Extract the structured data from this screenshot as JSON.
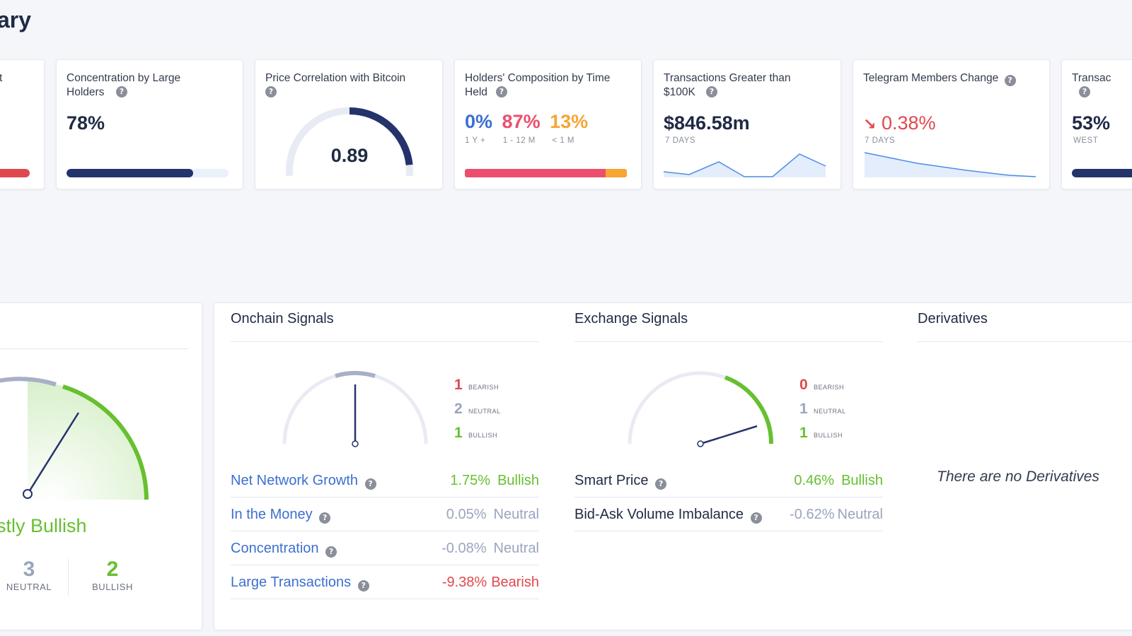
{
  "page": {
    "title": "ary"
  },
  "cards": {
    "first": {
      "title": "t"
    },
    "concentration": {
      "title": "Concentration by Large Holders",
      "value": "78%",
      "fill_fraction": 0.78
    },
    "correlation": {
      "title": "Price Correlation with Bitcoin",
      "value": "0.89",
      "gauge_fraction": 0.89
    },
    "holders": {
      "title": "Holders' Composition by Time Held",
      "segments": [
        {
          "value": "0%",
          "label": "1 Y +",
          "color": "#3c6fd1",
          "fraction": 0.0
        },
        {
          "value": "87%",
          "label": "1 - 12 M",
          "color": "#ec4f6d",
          "fraction": 0.87
        },
        {
          "value": "13%",
          "label": "< 1 M",
          "color": "#f7a533",
          "fraction": 0.13
        }
      ]
    },
    "transactions": {
      "title": "Transactions Greater than $100K",
      "value": "$846.58m",
      "period": "7 DAYS"
    },
    "telegram": {
      "title": "Telegram Members Change",
      "value": "0.38%",
      "period": "7 DAYS",
      "trend": "down"
    },
    "last": {
      "title": "Transac",
      "value": "53%",
      "sub": "WEST"
    }
  },
  "panels": {
    "overall": {
      "verdict": "stly Bullish",
      "neutral": {
        "count": "3",
        "label": "NEUTRAL"
      },
      "bullish": {
        "count": "2",
        "label": "BULLISH"
      }
    },
    "onchain": {
      "title": "Onchain Signals",
      "bearish": {
        "count": "1",
        "label": "bearish"
      },
      "neutral": {
        "count": "2",
        "label": "neutral"
      },
      "bullish": {
        "count": "1",
        "label": "bullish"
      },
      "rows": [
        {
          "name": "Net Network Growth",
          "pct": "1.75%",
          "status": "Bullish"
        },
        {
          "name": "In the Money",
          "pct": "0.05%",
          "status": "Neutral"
        },
        {
          "name": "Concentration",
          "pct": "-0.08%",
          "status": "Neutral"
        },
        {
          "name": "Large Transactions",
          "pct": "-9.38%",
          "status": "Bearish"
        }
      ]
    },
    "exchange": {
      "title": "Exchange Signals",
      "bearish": {
        "count": "0",
        "label": "bearish"
      },
      "neutral": {
        "count": "1",
        "label": "neutral"
      },
      "bullish": {
        "count": "1",
        "label": "bullish"
      },
      "rows": [
        {
          "name": "Smart Price",
          "pct": "0.46%",
          "status": "Bullish"
        },
        {
          "name": "Bid-Ask Volume Imbalance",
          "pct": "-0.62%",
          "status": "Neutral"
        }
      ]
    },
    "derivatives": {
      "title": "Derivatives",
      "empty_text": "There are no Derivatives"
    }
  },
  "colors": {
    "navy": "#1f2a44",
    "bullish": "#66c02f",
    "neutral": "#9aa5be",
    "bearish": "#e0484f",
    "link": "#3c6fd1"
  },
  "icons": {
    "help": "help-icon",
    "down_arrow": "arrow-down-right-icon"
  }
}
